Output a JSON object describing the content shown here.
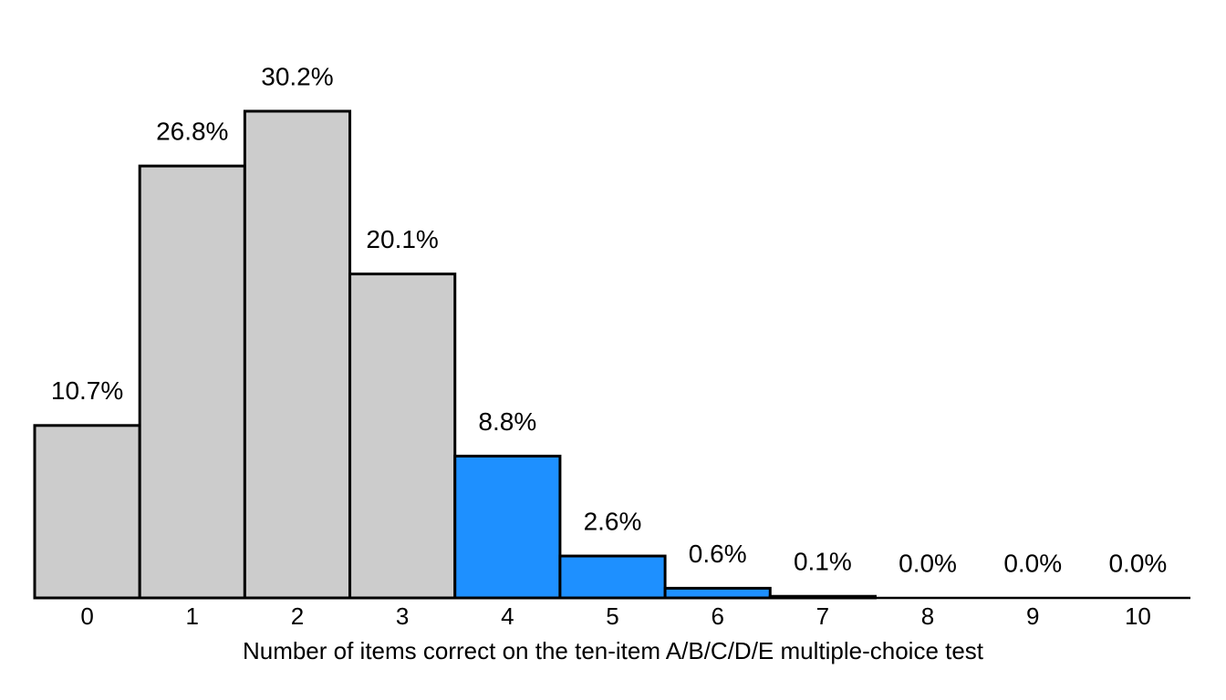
{
  "chart_data": {
    "type": "bar",
    "x_label": "Number of items correct on the ten-item A/B/C/D/E multiple-choice test",
    "categories": [
      "0",
      "1",
      "2",
      "3",
      "4",
      "5",
      "6",
      "7",
      "8",
      "9",
      "10"
    ],
    "values": [
      10.7,
      26.8,
      30.2,
      20.1,
      8.8,
      2.6,
      0.6,
      0.1,
      0.0,
      0.0,
      0.0
    ],
    "value_labels": [
      "10.7%",
      "26.8%",
      "30.2%",
      "20.1%",
      "8.8%",
      "2.6%",
      "0.6%",
      "0.1%",
      "0.0%",
      "0.0%",
      "0.0%"
    ],
    "colors": [
      "#cccccc",
      "#cccccc",
      "#cccccc",
      "#cccccc",
      "#1e90ff",
      "#1e90ff",
      "#1e90ff",
      "#1e90ff",
      "#1e90ff",
      "#1e90ff",
      "#1e90ff"
    ]
  }
}
